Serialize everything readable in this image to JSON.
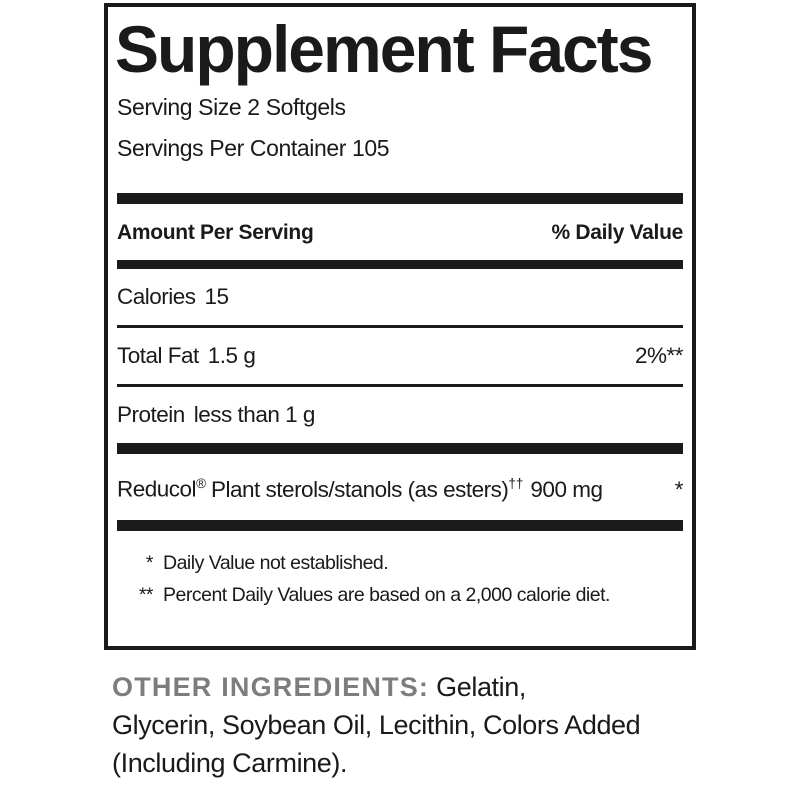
{
  "panel": {
    "title": "Supplement Facts",
    "serving_size": "Serving Size 2 Softgels",
    "servings_per_container": "Servings Per Container 105",
    "headers": {
      "amount": "Amount Per Serving",
      "daily_value": "% Daily Value"
    },
    "rows": {
      "calories": {
        "name": "Calories",
        "amount": "15",
        "dv": ""
      },
      "total_fat": {
        "name": "Total Fat",
        "amount": "1.5 g",
        "dv": "2%**"
      },
      "protein": {
        "name": "Protein",
        "amount": "less than 1 g",
        "dv": ""
      },
      "reducol": {
        "brand": "Reducol",
        "reg_mark": "®",
        "desc": "Plant sterols/stanols (as esters)",
        "dagger_mark": "††",
        "amount": "900 mg",
        "dv": "*"
      }
    },
    "footnotes": [
      {
        "marker": "*",
        "text": "Daily Value not established."
      },
      {
        "marker": "**",
        "text": "Percent Daily Values are based on a 2,000 calorie diet."
      }
    ]
  },
  "other_ingredients": {
    "heading": "OTHER INGREDIENTS:",
    "line1": "Gelatin,",
    "line2": "Glycerin, Soybean Oil, Lecithin, Colors Added",
    "line3": "(Including Carmine)."
  },
  "colors": {
    "ink": "#1a1a1a",
    "gray_heading": "#7d7d7d",
    "background": "#ffffff"
  }
}
